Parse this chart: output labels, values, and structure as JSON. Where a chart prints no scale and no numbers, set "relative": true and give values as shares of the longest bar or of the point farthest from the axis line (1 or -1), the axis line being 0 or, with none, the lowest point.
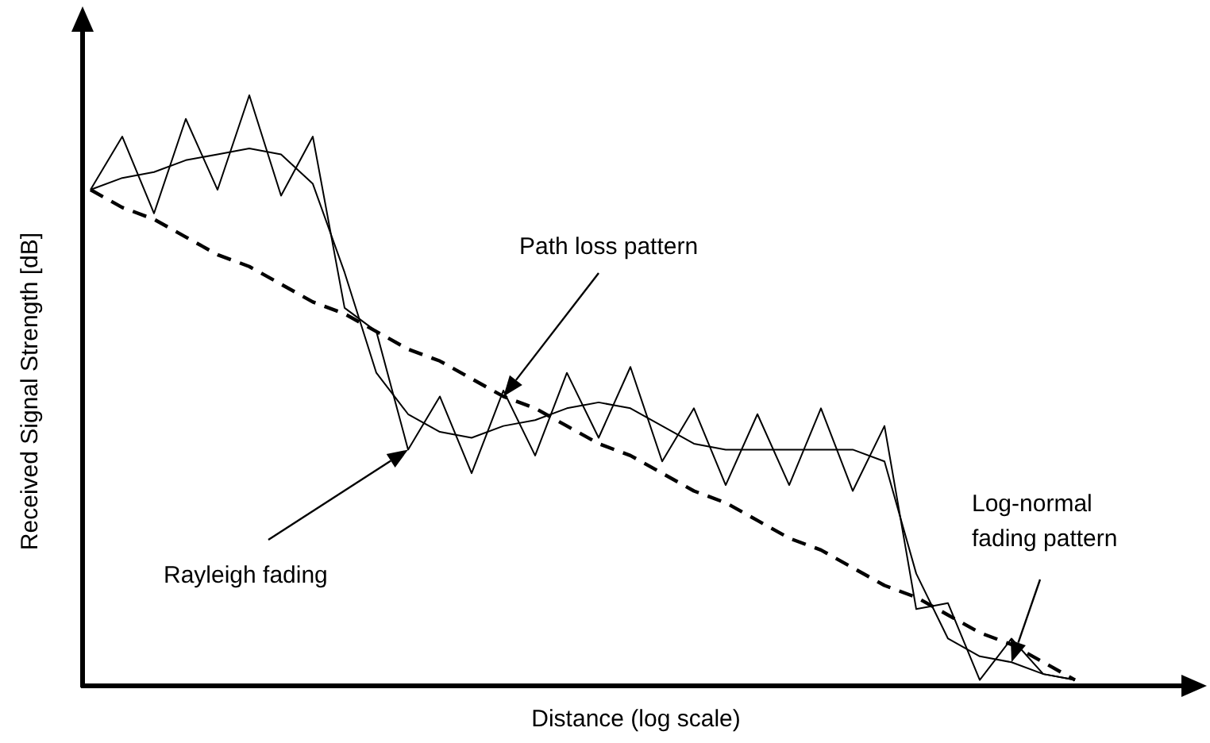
{
  "chart_data": {
    "type": "line",
    "relative": true,
    "xlabel": "Distance (log scale)",
    "ylabel": "Received Signal Strength [dB]",
    "categories": [
      null,
      null,
      null,
      null,
      null,
      null,
      null,
      null,
      null,
      null,
      null,
      null,
      null,
      null,
      null,
      null,
      null,
      null,
      null,
      null,
      null,
      null,
      null,
      null,
      null,
      null,
      null,
      null,
      null,
      null,
      null,
      null
    ],
    "series": [
      {
        "color": "#000000",
        "line_style": "solid",
        "values": [
          0.84,
          0.93,
          0.8,
          0.96,
          0.84,
          1,
          0.83,
          0.93,
          0.64,
          0.6,
          0.4,
          0.49,
          0.36,
          0.5,
          0.39,
          0.53,
          0.42,
          0.54,
          0.38,
          0.47,
          0.34,
          0.46,
          0.34,
          0.47,
          0.33,
          0.44,
          0.13,
          0.14,
          0.01,
          0.08,
          0.02,
          0.01
        ]
      },
      {
        "color": "#000000",
        "line_style": "solid",
        "values": [
          0.84,
          0.86,
          0.87,
          0.89,
          0.9,
          0.91,
          0.9,
          0.85,
          0.7,
          0.53,
          0.46,
          0.43,
          0.42,
          0.44,
          0.45,
          0.47,
          0.48,
          0.47,
          0.44,
          0.41,
          0.4,
          0.4,
          0.4,
          0.4,
          0.4,
          0.38,
          0.19,
          0.08,
          0.05,
          0.04,
          0.02,
          0.01
        ]
      },
      {
        "color": "#000000",
        "line_style": "dashed",
        "values": [
          0.84,
          0.81,
          0.79,
          0.76,
          0.73,
          0.71,
          0.68,
          0.65,
          0.63,
          0.6,
          0.57,
          0.55,
          0.52,
          0.49,
          0.47,
          0.44,
          0.41,
          0.39,
          0.36,
          0.33,
          0.31,
          0.28,
          0.25,
          0.23,
          0.2,
          0.17,
          0.15,
          0.12,
          0.09,
          0.07,
          0.04,
          0.01
        ]
      }
    ],
    "annotations": [
      "Path loss pattern",
      "Rayleigh fading",
      "Log-normal fading pattern"
    ]
  }
}
